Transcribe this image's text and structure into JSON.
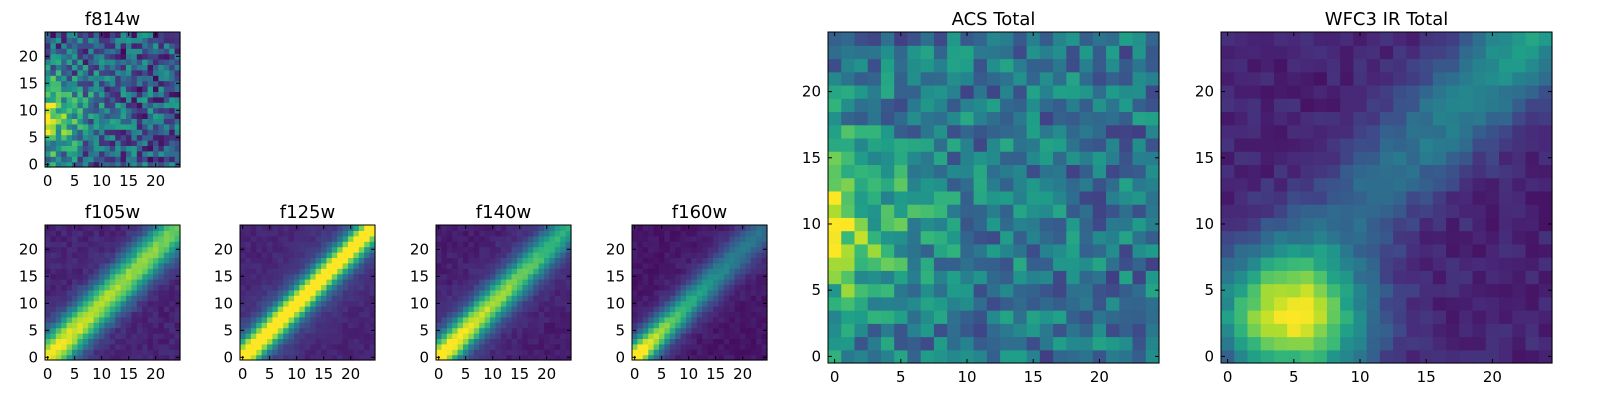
{
  "chart_data": [
    {
      "type": "heatmap",
      "title": "f814w",
      "xlim": [
        0,
        24
      ],
      "ylim": [
        0,
        24
      ],
      "xticks": [
        0,
        5,
        10,
        15,
        20
      ],
      "yticks": [
        0,
        5,
        10,
        15,
        20
      ],
      "colormap": "viridis",
      "pattern": "noisy emission peaking along left edge near y=9, fading to the right"
    },
    {
      "type": "heatmap",
      "title": "f105w",
      "xlim": [
        0,
        24
      ],
      "ylim": [
        0,
        24
      ],
      "xticks": [
        0,
        5,
        10,
        15,
        20
      ],
      "yticks": [
        0,
        5,
        10,
        15,
        20
      ],
      "colormap": "viridis",
      "pattern": "bright diagonal band from (0,0) to (24,24)"
    },
    {
      "type": "heatmap",
      "title": "f125w",
      "xlim": [
        0,
        24
      ],
      "ylim": [
        0,
        24
      ],
      "xticks": [
        0,
        5,
        10,
        15,
        20
      ],
      "yticks": [
        0,
        5,
        10,
        15,
        20
      ],
      "colormap": "viridis",
      "pattern": "bright narrow diagonal band from (0,0) to (24,24)"
    },
    {
      "type": "heatmap",
      "title": "f140w",
      "xlim": [
        0,
        24
      ],
      "ylim": [
        0,
        24
      ],
      "xticks": [
        0,
        5,
        10,
        15,
        20
      ],
      "yticks": [
        0,
        5,
        10,
        15,
        20
      ],
      "colormap": "viridis",
      "pattern": "diagonal band brightest near origin, fading toward upper right"
    },
    {
      "type": "heatmap",
      "title": "f160w",
      "xlim": [
        0,
        24
      ],
      "ylim": [
        0,
        24
      ],
      "xticks": [
        0,
        5,
        10,
        15,
        20
      ],
      "yticks": [
        0,
        5,
        10,
        15,
        20
      ],
      "colormap": "viridis",
      "pattern": "diagonal band bright only near origin, fading quickly"
    },
    {
      "type": "heatmap",
      "title": "ACS Total",
      "xlim": [
        0,
        24
      ],
      "ylim": [
        0,
        24
      ],
      "xticks": [
        0,
        5,
        10,
        15,
        20
      ],
      "yticks": [
        0,
        5,
        10,
        15,
        20
      ],
      "colormap": "viridis",
      "pattern": "noisy emission peaking along left edge near y=10"
    },
    {
      "type": "heatmap",
      "title": "WFC3 IR Total",
      "xlim": [
        0,
        24
      ],
      "ylim": [
        0,
        24
      ],
      "xticks": [
        0,
        5,
        10,
        15,
        20
      ],
      "yticks": [
        0,
        5,
        10,
        15,
        20
      ],
      "colormap": "viridis",
      "pattern": "broad bright region near (5,3) with diagonal ridge toward upper right"
    }
  ]
}
